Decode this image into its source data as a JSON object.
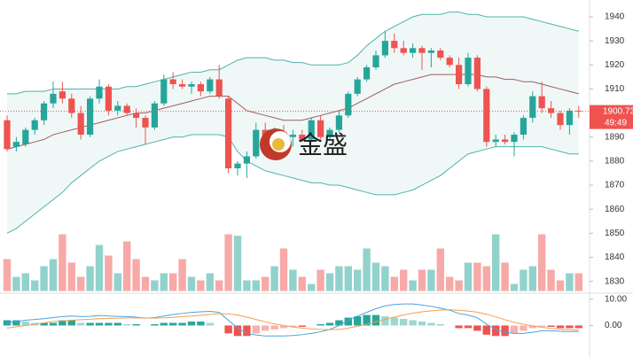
{
  "chart_data": {
    "type": "candlestick",
    "watermark": "金盛",
    "up_color": "#26a69a",
    "down_color": "#ef5350",
    "ylim": [
      1826,
      1947
    ],
    "yticks": [
      1830,
      1840,
      1850,
      1860,
      1870,
      1880,
      1890,
      1900,
      1910,
      1920,
      1930,
      1940
    ],
    "last_price": 1900.73,
    "countdown": "49:49",
    "open": [
      1897,
      1886,
      1887,
      1893,
      1897,
      1904,
      1909,
      1906,
      1900,
      1891,
      1906,
      1911,
      1901,
      1903,
      1900,
      1898,
      1894,
      1904,
      1914,
      1912,
      1911,
      1912,
      1909,
      1914,
      1906,
      1877,
      1879,
      1882,
      1893,
      1885,
      1892,
      1890,
      1891,
      1889,
      1897,
      1890,
      1893,
      1899,
      1908,
      1914,
      1919,
      1924,
      1930,
      1927,
      1925,
      1927,
      1925,
      1926,
      1923,
      1920,
      1912,
      1923,
      1910,
      1888,
      1889,
      1888,
      1891,
      1898,
      1907,
      1902,
      1900,
      1895,
      1901
    ],
    "high": [
      1899,
      1890,
      1894,
      1898,
      1905,
      1913,
      1913,
      1908,
      1903,
      1907,
      1914,
      1912,
      1905,
      1904,
      1902,
      1899,
      1905,
      1916,
      1917,
      1914,
      1913,
      1913,
      1915,
      1920,
      1907,
      1880,
      1884,
      1896,
      1896,
      1894,
      1895,
      1893,
      1893,
      1898,
      1899,
      1894,
      1901,
      1909,
      1915,
      1920,
      1926,
      1934,
      1933,
      1930,
      1929,
      1928,
      1927,
      1927,
      1924,
      1923,
      1925,
      1924,
      1911,
      1891,
      1891,
      1892,
      1899,
      1909,
      1913,
      1905,
      1901,
      1902,
      1903
    ],
    "low": [
      1884,
      1884,
      1886,
      1891,
      1895,
      1902,
      1904,
      1898,
      1889,
      1890,
      1904,
      1899,
      1899,
      1899,
      1894,
      1887,
      1893,
      1903,
      1910,
      1910,
      1908,
      1907,
      1908,
      1906,
      1875,
      1874,
      1873,
      1881,
      1883,
      1881,
      1889,
      1886,
      1888,
      1888,
      1889,
      1889,
      1892,
      1898,
      1907,
      1913,
      1918,
      1923,
      1925,
      1924,
      1923,
      1918,
      1919,
      1922,
      1919,
      1910,
      1911,
      1909,
      1886,
      1886,
      1887,
      1882,
      1889,
      1896,
      1900,
      1898,
      1893,
      1891,
      1898
    ],
    "close": [
      1885,
      1888,
      1893,
      1897,
      1904,
      1908,
      1906,
      1900,
      1891,
      1906,
      1911,
      1901,
      1903,
      1900,
      1898,
      1894,
      1904,
      1914,
      1912,
      1911,
      1912,
      1909,
      1914,
      1907,
      1877,
      1879,
      1882,
      1893,
      1885,
      1892,
      1890,
      1891,
      1889,
      1897,
      1890,
      1893,
      1899,
      1908,
      1914,
      1919,
      1924,
      1930,
      1927,
      1925,
      1927,
      1925,
      1926,
      1923,
      1920,
      1912,
      1923,
      1910,
      1888,
      1889,
      1888,
      1891,
      1898,
      1907,
      1902,
      1900,
      1895,
      1901,
      1900.73
    ],
    "bands": {
      "color": "#4fb3a8",
      "middle_color": "#a15c5c",
      "fill": "rgba(79,179,168,0.09)",
      "upper": [
        1908,
        1908,
        1909,
        1909,
        1909,
        1910,
        1910,
        1910,
        1910,
        1910,
        1910,
        1910,
        1910,
        1911,
        1911,
        1912,
        1913,
        1914,
        1915,
        1916,
        1917,
        1917,
        1918,
        1918,
        1920,
        1922,
        1923,
        1923,
        1923,
        1922,
        1922,
        1921,
        1921,
        1920,
        1920,
        1920,
        1920,
        1921,
        1924,
        1928,
        1931,
        1934,
        1936,
        1938,
        1940,
        1941,
        1941,
        1941,
        1942,
        1942,
        1941,
        1941,
        1940,
        1940,
        1940,
        1940,
        1940,
        1939,
        1938,
        1937,
        1936,
        1935,
        1934
      ],
      "middle": [
        1885,
        1886,
        1887,
        1888,
        1889,
        1891,
        1892,
        1893,
        1894,
        1895,
        1896,
        1897,
        1898,
        1899,
        1900,
        1900,
        1901,
        1902,
        1903,
        1904,
        1905,
        1906,
        1907,
        1907,
        1907,
        1904,
        1901,
        1900,
        1899,
        1898,
        1897,
        1897,
        1897,
        1898,
        1899,
        1900,
        1901,
        1902,
        1904,
        1906,
        1908,
        1910,
        1912,
        1913,
        1914,
        1915,
        1916,
        1916,
        1916,
        1916,
        1916,
        1916,
        1915,
        1915,
        1914,
        1914,
        1913,
        1913,
        1912,
        1911,
        1910,
        1909,
        1908
      ],
      "lower": [
        1850,
        1852,
        1855,
        1858,
        1861,
        1864,
        1867,
        1871,
        1874,
        1877,
        1880,
        1882,
        1884,
        1885,
        1886,
        1887,
        1888,
        1889,
        1890,
        1890,
        1891,
        1891,
        1891,
        1891,
        1890,
        1884,
        1880,
        1878,
        1876,
        1875,
        1874,
        1873,
        1872,
        1871,
        1871,
        1870,
        1870,
        1869,
        1868,
        1867,
        1866,
        1866,
        1866,
        1867,
        1868,
        1870,
        1872,
        1874,
        1877,
        1880,
        1883,
        1884,
        1885,
        1886,
        1886,
        1886,
        1886,
        1886,
        1886,
        1885,
        1884,
        1883,
        1883
      ]
    },
    "volume": [
      45,
      20,
      25,
      15,
      35,
      45,
      80,
      40,
      20,
      35,
      65,
      50,
      25,
      70,
      45,
      20,
      15,
      25,
      25,
      45,
      20,
      15,
      25,
      15,
      80,
      78,
      15,
      15,
      20,
      35,
      60,
      30,
      20,
      10,
      30,
      25,
      35,
      35,
      30,
      60,
      40,
      35,
      20,
      30,
      15,
      30,
      30,
      60,
      20,
      15,
      40,
      40,
      35,
      80,
      40,
      10,
      30,
      35,
      80,
      30,
      15,
      25,
      25
    ],
    "macd": {
      "ylim": [
        -12,
        12.3
      ],
      "yticks": [
        {
          "value": 10,
          "label": "10.00"
        },
        {
          "value": 0,
          "label": "0.00"
        }
      ],
      "dif_color": "#4aa3df",
      "dea_color": "#f0a050",
      "histogram": [
        2,
        2,
        1.5,
        1,
        1,
        1,
        2,
        2,
        1,
        1,
        1,
        1,
        1,
        0.5,
        0.5,
        0,
        0.5,
        1,
        1,
        1,
        1.5,
        1.5,
        1,
        0,
        -3,
        -4,
        -4,
        -3,
        -2,
        -1.5,
        -1,
        -0.5,
        -0.5,
        0,
        0.5,
        1,
        2,
        3,
        3.5,
        4,
        4,
        3.5,
        3,
        2.5,
        2,
        1.5,
        1,
        0.5,
        0,
        -1,
        -1,
        -2,
        -3.5,
        -4,
        -4,
        -3,
        -2,
        -1,
        -0.5,
        -0.5,
        -1,
        -1,
        -1
      ],
      "dif": [
        1,
        1.5,
        2,
        2.3,
        2.6,
        3,
        3.4,
        3.6,
        3.4,
        3.5,
        3.8,
        3.6,
        3.5,
        3.4,
        3.2,
        2.8,
        3,
        3.6,
        4.2,
        4.6,
        5,
        5.2,
        5.4,
        5,
        2,
        -1,
        -3,
        -3.6,
        -4,
        -4,
        -4,
        -3.8,
        -3.5,
        -3,
        -2.4,
        -1.5,
        0,
        2,
        3.6,
        5,
        6.4,
        7.5,
        8,
        8.2,
        8.2,
        7.8,
        7.3,
        6.6,
        5.8,
        4.6,
        4,
        3,
        0.5,
        -1.5,
        -2.6,
        -3,
        -3,
        -2.6,
        -2,
        -2,
        -2.2,
        -2.3,
        -2.3
      ],
      "dea": [
        -1,
        -0.5,
        0,
        0.5,
        1,
        1.5,
        1.8,
        2,
        2.2,
        2.4,
        2.6,
        2.7,
        2.8,
        2.9,
        2.9,
        2.9,
        2.8,
        2.9,
        3.1,
        3.4,
        3.6,
        3.9,
        4.2,
        4.5,
        4.4,
        4,
        3.2,
        2.3,
        1.4,
        0.6,
        0,
        -0.6,
        -1,
        -1.3,
        -1.5,
        -1.6,
        -1.5,
        -1,
        -0.3,
        0.5,
        1.4,
        2.3,
        3.2,
        4,
        4.7,
        5.2,
        5.6,
        5.9,
        6,
        5.8,
        5.5,
        5.1,
        4.3,
        3.3,
        2.2,
        1.2,
        0.5,
        -0.2,
        -0.7,
        -1.1,
        -1.4,
        -1.6,
        -1.8
      ]
    }
  }
}
